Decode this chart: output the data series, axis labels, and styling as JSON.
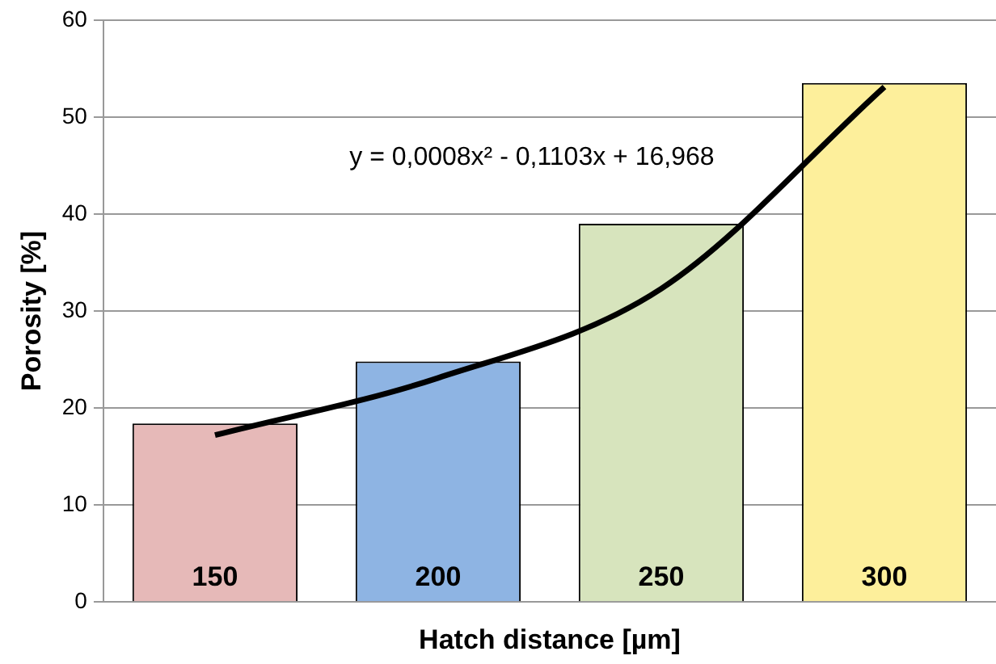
{
  "chart_data": {
    "type": "bar",
    "xlabel": "Hatch distance [µm]",
    "ylabel": "Porosity [%]",
    "categories": [
      "150",
      "200",
      "250",
      "300"
    ],
    "series": [
      {
        "colors": [
          "#e6b9b8",
          "#8eb4e3",
          "#d7e4bd",
          "#fdef9b"
        ],
        "values": [
          18.4,
          24.8,
          39.0,
          53.5
        ]
      },
      {
        "type": "line",
        "color": "#000000",
        "values": [
          17.2,
          23.1,
          32.3,
          53.1
        ]
      }
    ],
    "ylim": [
      0,
      60
    ],
    "yticks": [
      0,
      10,
      20,
      30,
      40,
      50,
      60
    ],
    "grid": "y",
    "marker": "none",
    "annotations": [
      "y = 0,0008x² - 0,1103x + 16,968"
    ]
  }
}
